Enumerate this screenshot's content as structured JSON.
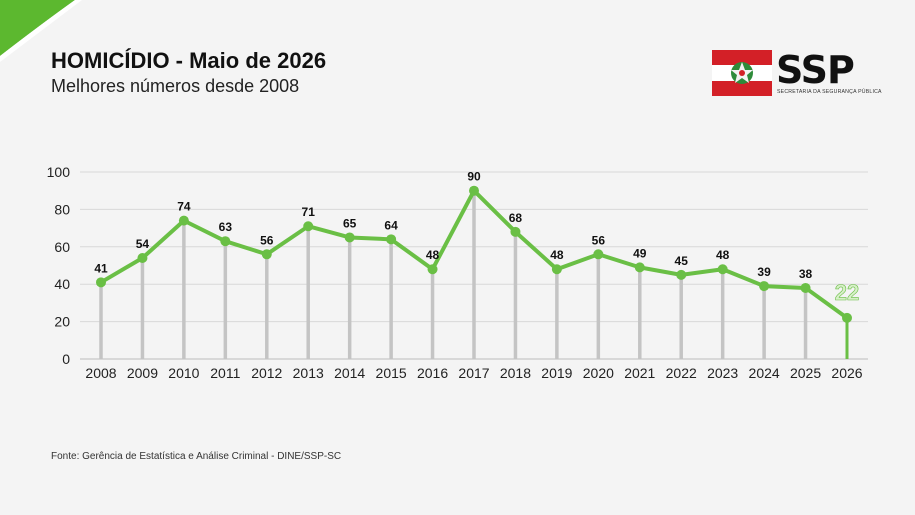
{
  "header": {
    "title": "HOMICÍDIO - Maio de 2026",
    "subtitle": "Melhores números desde 2008"
  },
  "logo": {
    "text": "SSP",
    "subtitle": "SECRETARIA DA SEGURANÇA PÚBLICA",
    "colors": {
      "red": "#d32027",
      "green": "#2e8b3a"
    }
  },
  "footer": {
    "source": "Fonte: Gerência de Estatística e Análise Criminal - DINE/SSP-SC"
  },
  "colors": {
    "line": "#6abf45",
    "highlight_label": "#d7f0c8",
    "grid": "#d8d8d8",
    "stem": "#c4c4c4",
    "corner": "#5cb82f"
  },
  "chart_data": {
    "type": "line",
    "categories": [
      "2008",
      "2009",
      "2010",
      "2011",
      "2012",
      "2013",
      "2014",
      "2015",
      "2016",
      "2017",
      "2018",
      "2019",
      "2020",
      "2021",
      "2022",
      "2023",
      "2024",
      "2025",
      "2026"
    ],
    "series": [
      {
        "values": [
          41,
          54,
          74,
          63,
          56,
          71,
          65,
          64,
          48,
          90,
          68,
          48,
          56,
          49,
          45,
          48,
          39,
          38,
          22
        ]
      }
    ],
    "ylim": [
      0,
      100
    ],
    "yticks": [
      0,
      20,
      40,
      60,
      80,
      100
    ],
    "grid": true,
    "data_labels": true,
    "highlight_last": true
  }
}
